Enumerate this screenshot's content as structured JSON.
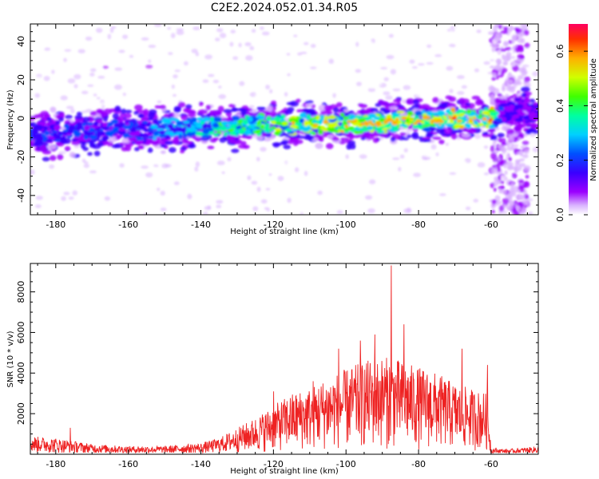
{
  "page": {
    "title": "C2E2.2024.052.01.34.R05"
  },
  "chart_data": [
    {
      "type": "heatmap",
      "title": "C2E2.2024.052.01.34.R05",
      "xlabel": "Height of straight line (km)",
      "ylabel": "Frequency (Hz)",
      "xlim": [
        -187,
        -47
      ],
      "ylim": [
        -50,
        49
      ],
      "xticks": [
        -180,
        -160,
        -140,
        -120,
        -100,
        -80,
        -60
      ],
      "yticks": [
        -40,
        -20,
        0,
        20,
        40
      ],
      "colorbar": {
        "label": "Normalized spectral amplitude",
        "range": [
          0.0,
          0.7
        ],
        "ticks": [
          0.0,
          0.2,
          0.4,
          0.6
        ],
        "colormap": [
          "#ffffff",
          "#d9b3ff",
          "#9b00ff",
          "#3a00ff",
          "#0050ff",
          "#00d0ff",
          "#00ffa0",
          "#40ff00",
          "#d0ff00",
          "#ffb000",
          "#ff3000",
          "#ff0060"
        ]
      },
      "ridge": {
        "description_points_km": [
          -187,
          -160,
          -140,
          -120,
          -100,
          -80,
          -60,
          -58,
          -55,
          -47
        ],
        "center_hz": [
          -9,
          -6,
          -5,
          -3,
          -3,
          -1,
          0,
          2,
          3,
          3
        ],
        "peak_amplitude": [
          0.3,
          0.3,
          0.45,
          0.55,
          0.62,
          0.6,
          0.68,
          0.3,
          0.25,
          0.25
        ]
      },
      "broadband_band_km": [
        -60,
        -50
      ]
    },
    {
      "type": "line",
      "xlabel": "Height of straight line (km)",
      "ylabel": "SNR (10 * v/v)",
      "xlim": [
        -187,
        -47
      ],
      "ylim": [
        0,
        9400
      ],
      "xticks": [
        -180,
        -160,
        -140,
        -120,
        -100,
        -80,
        -60
      ],
      "yticks": [
        2000,
        4000,
        6000,
        8000
      ],
      "series": [
        {
          "color": "#ee2222",
          "envelope_x": [
            -187,
            -180,
            -170,
            -160,
            -150,
            -140,
            -135,
            -130,
            -125,
            -120,
            -115,
            -110,
            -105,
            -100,
            -95,
            -90,
            -87,
            -85,
            -80,
            -75,
            -70,
            -65,
            -61,
            -60,
            -55,
            -47
          ],
          "envelope_y": [
            900,
            800,
            500,
            400,
            400,
            550,
            800,
            1300,
            1800,
            2400,
            3000,
            3300,
            3800,
            4200,
            4600,
            4800,
            4800,
            4600,
            4300,
            4000,
            3500,
            3200,
            3000,
            300,
            250,
            400
          ],
          "spikes": [
            {
              "x": -87.5,
              "y": 9300
            },
            {
              "x": -84,
              "y": 6400
            },
            {
              "x": -92,
              "y": 5900
            },
            {
              "x": -96,
              "y": 5600
            },
            {
              "x": -102,
              "y": 5200
            },
            {
              "x": -68,
              "y": 5200
            },
            {
              "x": -61,
              "y": 4400
            },
            {
              "x": -109,
              "y": 3600
            },
            {
              "x": -120,
              "y": 3100
            },
            {
              "x": -176,
              "y": 1300
            }
          ]
        }
      ]
    }
  ]
}
